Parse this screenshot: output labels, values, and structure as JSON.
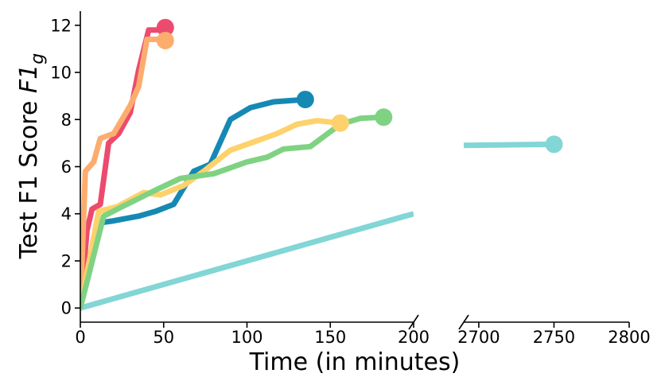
{
  "chart_data": {
    "type": "line",
    "title": "",
    "xlabel": "Time (in minutes)",
    "ylabel_main": "Test F1 Score ",
    "ylabel_italic": "F1",
    "ylabel_sub": "g",
    "ylim": [
      -0.6,
      12.6
    ],
    "yticks": [
      0,
      2,
      4,
      6,
      8,
      10,
      12
    ],
    "broken_x_axis": true,
    "segments": [
      {
        "xlim": [
          0,
          200
        ],
        "xticks": [
          0,
          50,
          100,
          150,
          200
        ]
      },
      {
        "xlim": [
          2690,
          2800
        ],
        "xticks": [
          2700,
          2750,
          2800
        ]
      }
    ],
    "series": [
      {
        "name": "red",
        "color": "#ec4b6e",
        "points": [
          [
            0,
            0
          ],
          [
            4,
            3.3
          ],
          [
            7,
            4.2
          ],
          [
            12,
            4.4
          ],
          [
            17,
            7.0
          ],
          [
            23,
            7.4
          ],
          [
            30,
            8.3
          ],
          [
            35,
            10.1
          ],
          [
            41,
            11.8
          ],
          [
            46,
            11.8
          ],
          [
            51,
            11.9
          ]
        ],
        "end_marker": [
          51,
          11.9
        ]
      },
      {
        "name": "orange",
        "color": "#fcad6e",
        "points": [
          [
            0,
            0
          ],
          [
            3,
            5.8
          ],
          [
            8,
            6.2
          ],
          [
            12,
            7.2
          ],
          [
            20,
            7.4
          ],
          [
            30,
            8.6
          ],
          [
            35,
            9.4
          ],
          [
            40,
            11.4
          ],
          [
            46,
            11.4
          ],
          [
            51,
            11.35
          ]
        ],
        "end_marker": [
          51,
          11.35
        ]
      },
      {
        "name": "blue",
        "color": "#1589b3",
        "points": [
          [
            0,
            0
          ],
          [
            10,
            3.6
          ],
          [
            20,
            3.7
          ],
          [
            35,
            3.9
          ],
          [
            45,
            4.1
          ],
          [
            56,
            4.4
          ],
          [
            68,
            5.8
          ],
          [
            78,
            6.1
          ],
          [
            90,
            8.0
          ],
          [
            102,
            8.5
          ],
          [
            116,
            8.75
          ],
          [
            135,
            8.85
          ]
        ],
        "end_marker": [
          135,
          8.85
        ]
      },
      {
        "name": "yellow",
        "color": "#fdd26c",
        "points": [
          [
            0,
            0
          ],
          [
            11,
            4.1
          ],
          [
            22,
            4.3
          ],
          [
            38,
            4.9
          ],
          [
            48,
            4.8
          ],
          [
            62,
            5.2
          ],
          [
            74,
            5.8
          ],
          [
            90,
            6.7
          ],
          [
            102,
            7.0
          ],
          [
            118,
            7.4
          ],
          [
            130,
            7.8
          ],
          [
            142,
            7.95
          ],
          [
            156,
            7.85
          ]
        ],
        "end_marker": [
          156,
          7.85
        ]
      },
      {
        "name": "green",
        "color": "#80d283",
        "points": [
          [
            0,
            0
          ],
          [
            14,
            3.9
          ],
          [
            25,
            4.3
          ],
          [
            45,
            5.0
          ],
          [
            60,
            5.5
          ],
          [
            80,
            5.7
          ],
          [
            100,
            6.2
          ],
          [
            112,
            6.4
          ],
          [
            122,
            6.75
          ],
          [
            138,
            6.85
          ],
          [
            156,
            7.8
          ],
          [
            168,
            8.05
          ],
          [
            182,
            8.1
          ]
        ],
        "end_marker": [
          182,
          8.1
        ]
      },
      {
        "name": "teal",
        "color": "#82d6d5",
        "segments": [
          {
            "points": [
              [
                0,
                0
              ],
              [
                200,
                4.0
              ]
            ]
          },
          {
            "points": [
              [
                2690,
                6.9
              ],
              [
                2750,
                6.95
              ]
            ],
            "end_marker": [
              2750,
              6.95
            ]
          }
        ]
      }
    ]
  }
}
